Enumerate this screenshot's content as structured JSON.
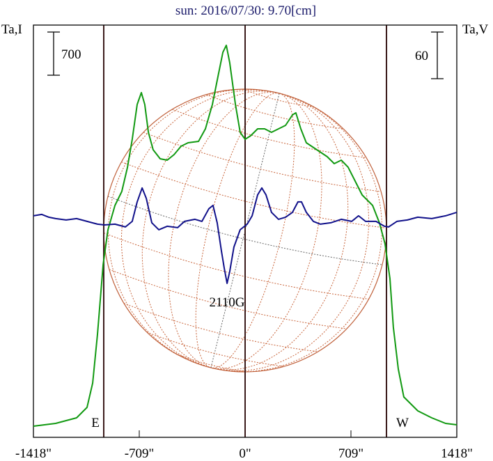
{
  "chart_data": {
    "type": "line",
    "title": "sun: 2016/07/30: 9.70[cm]",
    "left_axis_label": "Ta,I",
    "right_axis_label": "Ta,V",
    "left_scale_bar": "700",
    "right_scale_bar": "60",
    "left_scale_value": 700,
    "right_scale_value": 60,
    "xlim": [
      -1418,
      1418
    ],
    "ylim_I": [
      0,
      6684
    ],
    "ylim_V": [
      -283,
      247
    ],
    "x_ticks": [
      {
        "value": -1418,
        "label": "-1418\""
      },
      {
        "value": -709,
        "label": "-709\""
      },
      {
        "value": 0,
        "label": "0\""
      },
      {
        "value": 709,
        "label": "709\""
      },
      {
        "value": 1418,
        "label": "1418\""
      }
    ],
    "limb_lines": [
      -947,
      0,
      947
    ],
    "solar_radius": 947,
    "limb_labels": {
      "east": "E",
      "west": "W"
    },
    "annotation": "2110G",
    "series": [
      {
        "name": "I",
        "color": "#119911",
        "x": [
          -1418,
          -1269,
          -1129,
          -1059,
          -1021,
          -989,
          -951,
          -919,
          -872,
          -826,
          -788,
          -756,
          -723,
          -695,
          -672,
          -648,
          -616,
          -569,
          -522,
          -476,
          -429,
          -382,
          -312,
          -266,
          -219,
          -182,
          -149,
          -126,
          -103,
          -65,
          -33,
          0,
          37,
          84,
          131,
          177,
          224,
          271,
          317,
          340,
          373,
          410,
          480,
          550,
          597,
          644,
          690,
          737,
          784,
          854,
          900,
          937,
          970,
          993,
          1026,
          1063,
          1157,
          1250,
          1343,
          1418
        ],
        "y": [
          181,
          226,
          316,
          485,
          881,
          1671,
          2800,
          3364,
          3760,
          3985,
          4380,
          4832,
          5397,
          5589,
          5397,
          4945,
          4663,
          4516,
          4494,
          4584,
          4719,
          4776,
          4798,
          5002,
          5397,
          5848,
          6243,
          6356,
          6074,
          5397,
          4945,
          4832,
          4889,
          5002,
          5002,
          4945,
          5002,
          5058,
          5227,
          5261,
          5002,
          4776,
          4663,
          4550,
          4437,
          4494,
          4380,
          4155,
          3929,
          3760,
          3477,
          3139,
          2574,
          1784,
          1106,
          655,
          429,
          316,
          226,
          203
        ]
      },
      {
        "name": "V",
        "color": "#10108a",
        "x": [
          -1418,
          -1362,
          -1315,
          -1269,
          -1199,
          -1129,
          -1059,
          -989,
          -942,
          -872,
          -802,
          -756,
          -723,
          -690,
          -662,
          -625,
          -578,
          -522,
          -452,
          -406,
          -336,
          -289,
          -243,
          -215,
          -187,
          -159,
          -140,
          -121,
          -103,
          -75,
          -33,
          14,
          47,
          84,
          112,
          140,
          177,
          224,
          271,
          317,
          354,
          378,
          410,
          457,
          504,
          574,
          644,
          714,
          760,
          807,
          877,
          933,
          961,
          1017,
          1087,
          1157,
          1250,
          1343,
          1418
        ],
        "y": [
          1.8,
          3.6,
          0,
          -1.8,
          -3.6,
          -1.8,
          -5.4,
          -9,
          -9.9,
          -9,
          -12.5,
          -5.4,
          19.7,
          37.6,
          24.2,
          -7.2,
          -16.1,
          -11.6,
          -13.4,
          -5.4,
          -2.7,
          -5.4,
          10.8,
          15.2,
          -7.2,
          -43,
          -65.4,
          -85.1,
          -69.9,
          -38.5,
          -16.1,
          -9,
          1.8,
          28.7,
          37.6,
          28.7,
          6.3,
          -2.7,
          0,
          6.3,
          19.7,
          19.7,
          6.3,
          -5.4,
          -9,
          -7.2,
          -2.7,
          -5.4,
          1.8,
          -5.4,
          -5.4,
          -11.6,
          -12.5,
          -5.4,
          -3.6,
          0,
          -1.8,
          1.8,
          6.3
        ]
      }
    ]
  }
}
